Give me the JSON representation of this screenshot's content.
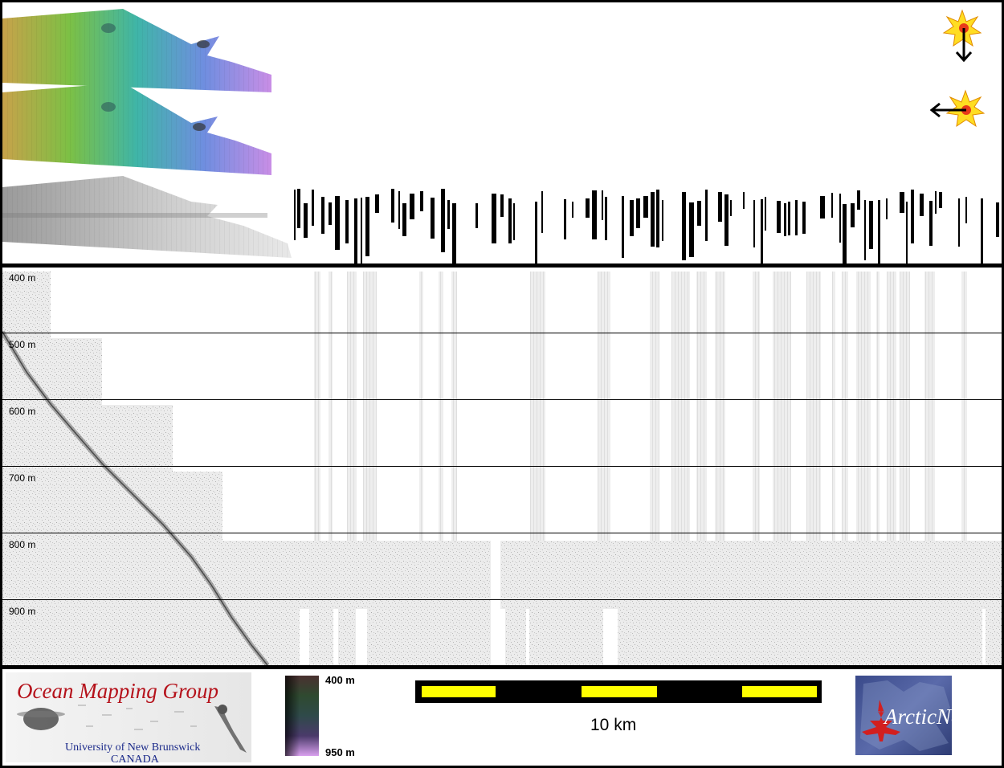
{
  "depth_axis": {
    "labels": [
      "400 m",
      "500 m",
      "600 m",
      "700 m",
      "800 m",
      "900 m"
    ]
  },
  "colorbar": {
    "min_label": "950 m",
    "max_label": "400 m"
  },
  "scale_bar": {
    "label": "10 km",
    "colors": [
      "#ffff00",
      "#000000"
    ]
  },
  "logos": {
    "omg": {
      "title": "Ocean Mapping Group",
      "university": "University of New Brunswick",
      "country": "CANADA"
    },
    "arcticnet": {
      "name": "ArcticNet"
    }
  },
  "sun_icons": [
    "sun-illumination-down-icon",
    "sun-illumination-left-icon"
  ]
}
